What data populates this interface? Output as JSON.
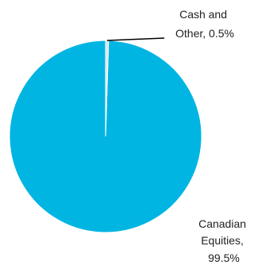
{
  "chart_data": {
    "type": "pie",
    "title": "",
    "slices": [
      {
        "label_lines": [
          "Canadian",
          "Equities,",
          "99.5%"
        ],
        "value": 99.5,
        "color": "#00B5E2"
      },
      {
        "label_lines": [
          "Cash and",
          "Other, 0.5%"
        ],
        "value": 0.5,
        "color": "#D9E3E8"
      }
    ],
    "legend": "none",
    "label_style": "outside labels with leader line on small slice"
  }
}
